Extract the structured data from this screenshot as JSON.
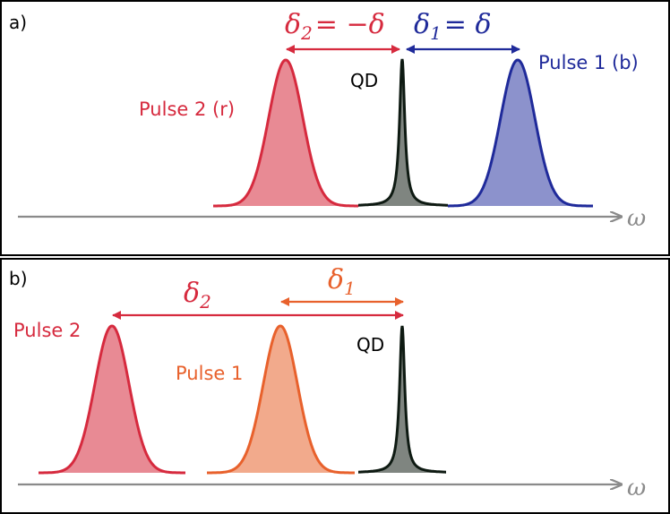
{
  "colors": {
    "red": "#d62a3e",
    "red_fill": "#e88a94",
    "blue": "#1f2a9a",
    "blue_fill": "#8c92cc",
    "orange": "#e8612c",
    "orange_fill": "#f2aa8c",
    "qd": "#0e1a12",
    "qd_fill": "#7f8580",
    "axis": "#8a8a8a",
    "frame": "#000000"
  },
  "panel_a": {
    "label": "a)",
    "axis_symbol": "ω",
    "qd_label": "QD",
    "pulse2_label": "Pulse 2 (r)",
    "pulse1_label": "Pulse 1 (b)",
    "delta2": {
      "sym": "δ",
      "sub": "2",
      "rhs": "= −δ"
    },
    "delta1": {
      "sym": "δ",
      "sub": "1",
      "rhs": "= δ"
    }
  },
  "panel_b": {
    "label": "b)",
    "axis_symbol": "ω",
    "qd_label": "QD",
    "pulse2_label": "Pulse 2",
    "pulse1_label": "Pulse 1",
    "delta2": {
      "sym": "δ",
      "sub": "2"
    },
    "delta1": {
      "sym": "δ",
      "sub": "1"
    }
  }
}
